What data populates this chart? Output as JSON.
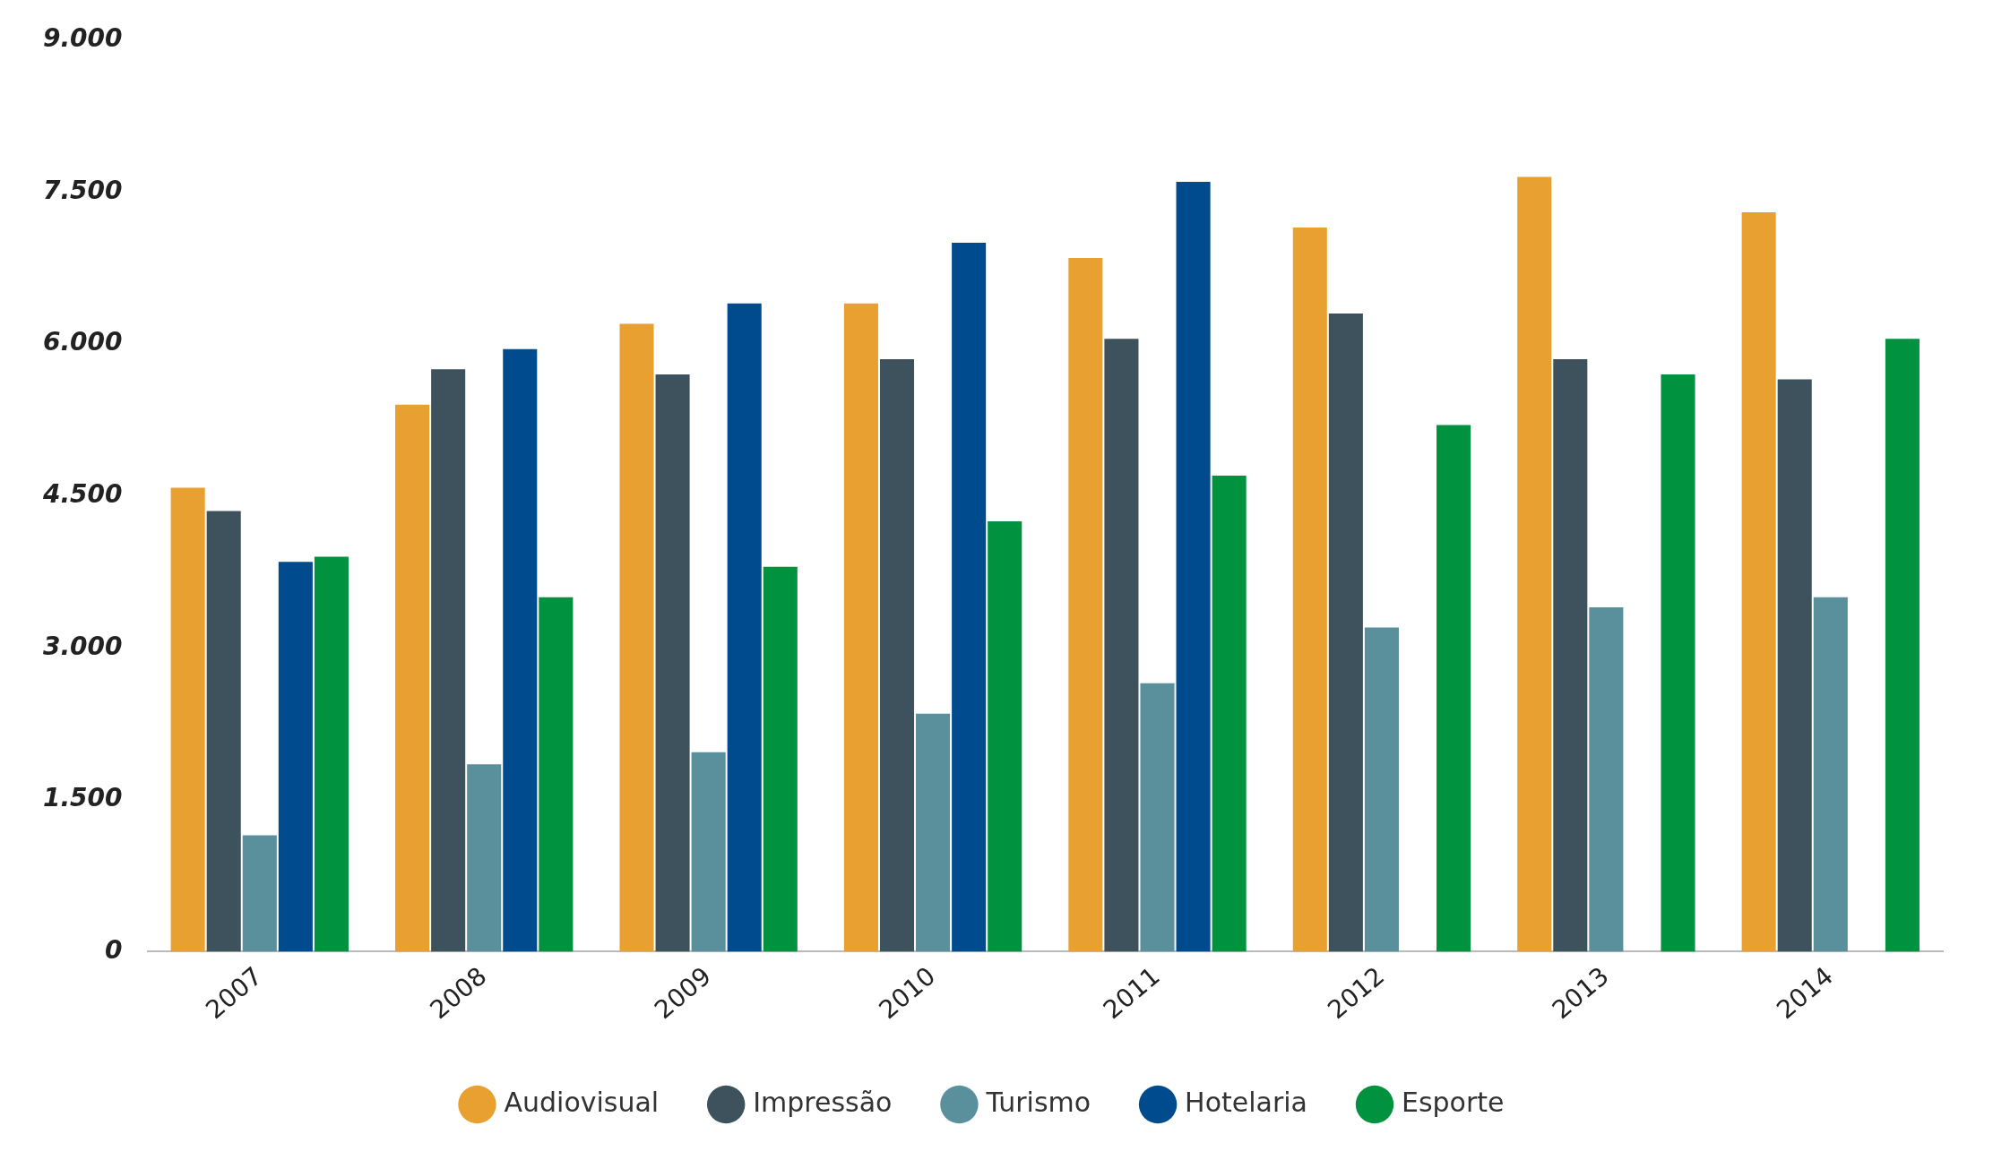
{
  "chart_data": {
    "type": "bar",
    "categories": [
      "2007",
      "2008",
      "2009",
      "2010",
      "2011",
      "2012",
      "2013",
      "2014"
    ],
    "series": [
      {
        "name": "Audiovisual",
        "color": "#e8a030",
        "values": [
          4580,
          5400,
          6200,
          6400,
          6850,
          7150,
          7650,
          7300
        ]
      },
      {
        "name": "Impressão",
        "color": "#3d525c",
        "values": [
          4350,
          5750,
          5700,
          5850,
          6050,
          6300,
          5850,
          5650
        ]
      },
      {
        "name": "Turismo",
        "color": "#5a8f9c",
        "values": [
          1150,
          1850,
          1970,
          2350,
          2650,
          3200,
          3400,
          3500
        ]
      },
      {
        "name": "Hotelaria",
        "color": "#004b8d",
        "values": [
          3850,
          5950,
          6400,
          7000,
          7600,
          null,
          null,
          null
        ]
      },
      {
        "name": "Esporte",
        "color": "#00923f",
        "values": [
          3900,
          3500,
          3800,
          4250,
          4700,
          5200,
          5700,
          6050
        ]
      }
    ],
    "ylim": [
      0,
      9000
    ],
    "yticks": [
      {
        "value": 0,
        "label": "0"
      },
      {
        "value": 1500,
        "label": "1.500"
      },
      {
        "value": 3000,
        "label": "3.000"
      },
      {
        "value": 4500,
        "label": "4.500"
      },
      {
        "value": 6000,
        "label": "6.000"
      },
      {
        "value": 7500,
        "label": "7.500"
      },
      {
        "value": 9000,
        "label": "9.000"
      }
    ],
    "grid": false,
    "legend": "bottom",
    "marker": "circle"
  }
}
